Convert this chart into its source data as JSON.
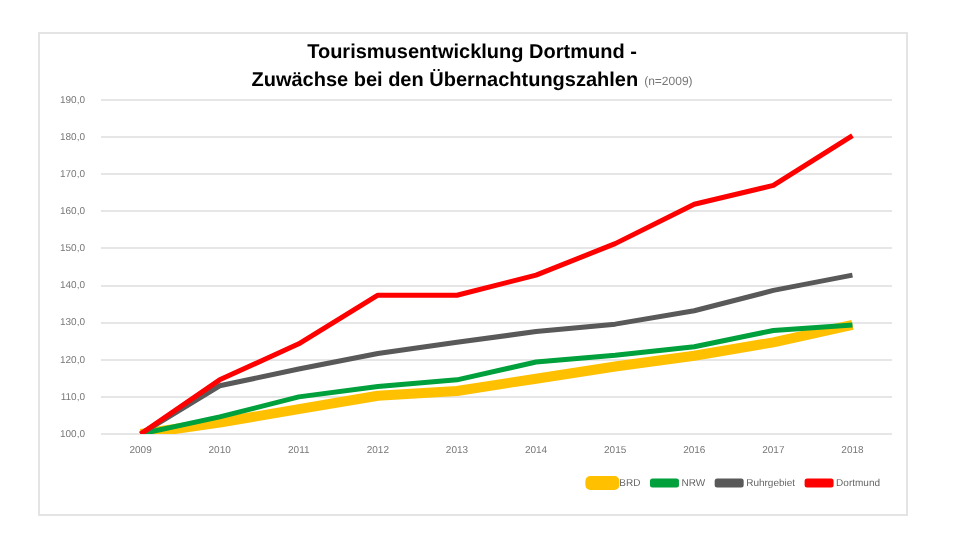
{
  "chart_data": {
    "type": "line",
    "title": "Tourismusentwicklung Dortmund -\nZuwächse bei den Übernachtungszahlen",
    "subtitle": "(n=2009)",
    "categories": [
      "2009",
      "2010",
      "2011",
      "2012",
      "2013",
      "2014",
      "2015",
      "2016",
      "2017",
      "2018"
    ],
    "series": [
      {
        "name": "BRD",
        "color": "#ffc000",
        "values": [
          100,
          103.1,
          106.7,
          110.3,
          111.6,
          114.9,
          118.2,
          121.1,
          124.7,
          129.4
        ]
      },
      {
        "name": "NRW",
        "color": "#00a03c",
        "values": [
          100,
          104.6,
          110,
          112.8,
          114.6,
          119.4,
          121.2,
          123.5,
          127.9,
          129.4
        ]
      },
      {
        "name": "Ruhrgebiet",
        "color": "#595959",
        "values": [
          100,
          113,
          117.5,
          121.7,
          124.7,
          127.6,
          129.6,
          133.2,
          138.7,
          142.8
        ]
      },
      {
        "name": "Dortmund",
        "color": "#ff0000",
        "values": [
          100,
          114.6,
          124.3,
          137.4,
          137.4,
          142.8,
          151.3,
          161.9,
          167,
          180.4
        ]
      }
    ],
    "ylim": [
      100,
      190
    ],
    "yticks": [
      {
        "value": 100,
        "label": "100,0"
      },
      {
        "value": 110,
        "label": "110,0"
      },
      {
        "value": 120,
        "label": "120,0"
      },
      {
        "value": 130,
        "label": "130,0"
      },
      {
        "value": 140,
        "label": "140,0"
      },
      {
        "value": 150,
        "label": "150,0"
      },
      {
        "value": 160,
        "label": "160,0"
      },
      {
        "value": 170,
        "label": "170,0"
      },
      {
        "value": 180,
        "label": "180,0"
      },
      {
        "value": 190,
        "label": "190,0"
      }
    ],
    "grid": "y",
    "legend": "bottom",
    "marker": "none",
    "line_style": "solid"
  }
}
